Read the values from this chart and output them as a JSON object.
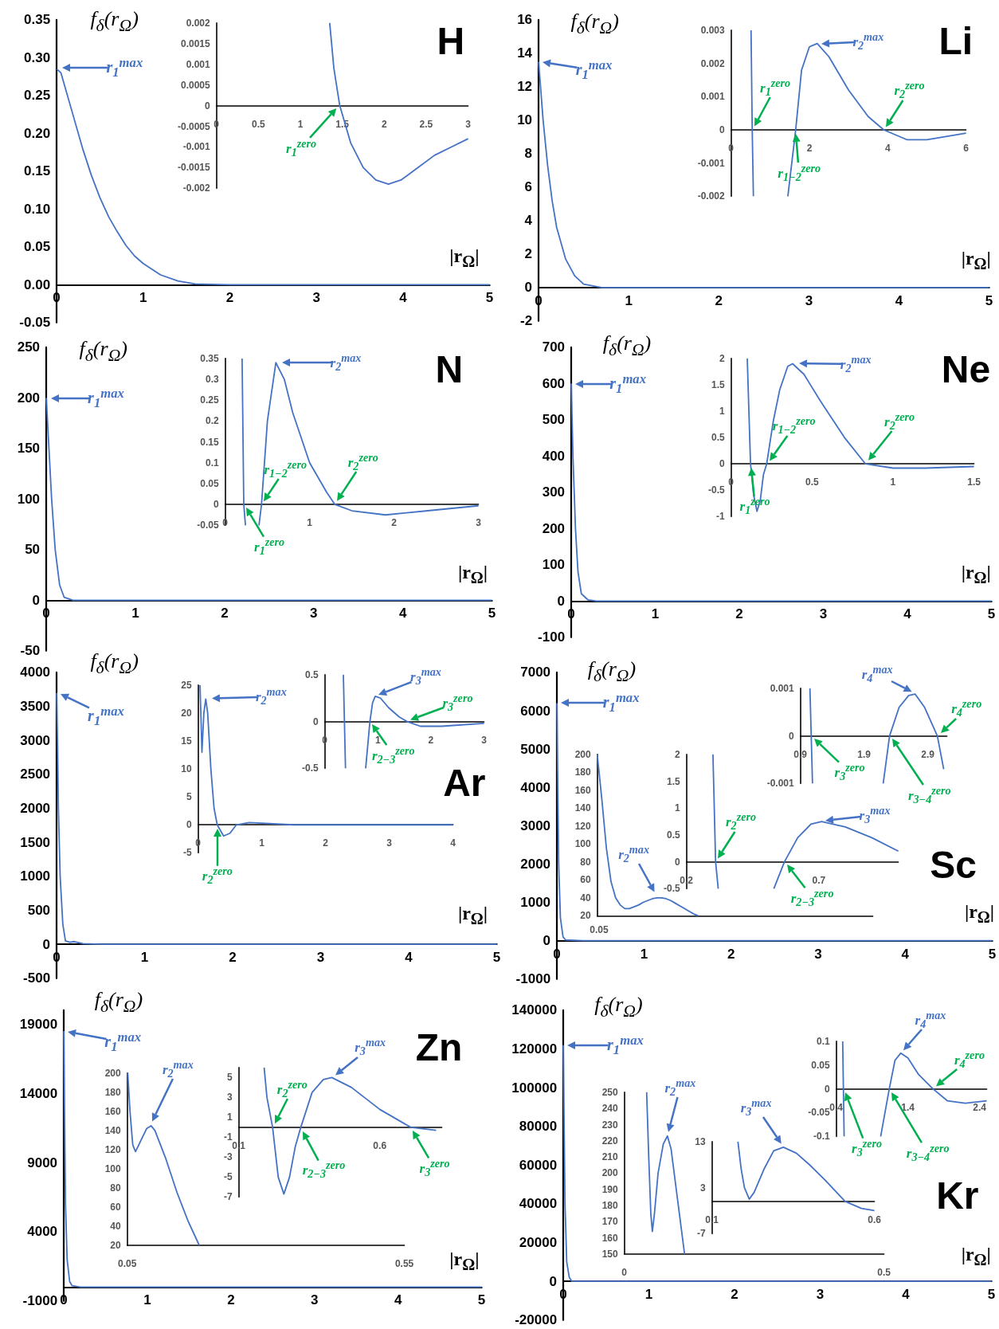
{
  "chart_data": [
    {
      "type": "line",
      "title": "H",
      "xlabel": "|r$_{Ω}$|",
      "ylabel": "f$_{δ}$(r$_{Ω}$)",
      "color": "#4472c4",
      "xlim": [
        0,
        5
      ],
      "xticks": [
        0,
        1,
        2,
        3,
        4,
        5
      ],
      "ylim": [
        -0.05,
        0.35
      ],
      "yticks": [
        {
          "value": -0.05,
          "label": "-0.05"
        },
        {
          "value": 0,
          "label": "0.00"
        },
        {
          "value": 0.05,
          "label": "0.05"
        },
        {
          "value": 0.1,
          "label": "0.10"
        },
        {
          "value": 0.15,
          "label": "0.15"
        },
        {
          "value": 0.2,
          "label": "0.20"
        },
        {
          "value": 0.25,
          "label": "0.25"
        },
        {
          "value": 0.3,
          "label": "0.30"
        },
        {
          "value": 0.35,
          "label": "0.35"
        }
      ],
      "x": [
        0,
        0.05,
        0.1,
        0.2,
        0.3,
        0.4,
        0.5,
        0.6,
        0.7,
        0.8,
        0.9,
        1,
        1.2,
        1.4,
        1.6,
        2,
        3,
        5
      ],
      "values": [
        0.285,
        0.28,
        0.26,
        0.22,
        0.18,
        0.145,
        0.115,
        0.09,
        0.07,
        0.052,
        0.038,
        0.028,
        0.013,
        0.005,
        0.001,
        0,
        0,
        0
      ],
      "annotations": [
        "r$_{1}$$^{max}$"
      ]
    },
    {
      "type": "line",
      "color": "#4472c4",
      "xlim": [
        0,
        3
      ],
      "xticks": [
        0,
        0.5,
        1,
        1.5,
        2,
        2.5,
        3
      ],
      "ylim": [
        -0.002,
        0.002
      ],
      "yticks": [
        -0.002,
        -0.0015,
        -0.001,
        -0.0005,
        0,
        0.0005,
        0.001,
        0.0015,
        0.002
      ],
      "x": [
        1.35,
        1.4,
        1.47,
        1.6,
        1.75,
        1.9,
        2.05,
        2.2,
        2.4,
        2.6,
        2.8,
        3
      ],
      "values": [
        0.002,
        0.0009,
        0,
        -0.0009,
        -0.0015,
        -0.0018,
        -0.0019,
        -0.0018,
        -0.0015,
        -0.0012,
        -0.001,
        -0.0008
      ],
      "annotations": [
        {
          "text": "r$_{1}$$^{zero}$",
          "x": 1.47,
          "y": 0
        }
      ]
    },
    {
      "type": "line",
      "title": "Li",
      "xlabel": "|r$_{Ω}$|",
      "ylabel": "f$_{δ}$(r$_{Ω}$)",
      "color": "#4472c4",
      "xlim": [
        0,
        5
      ],
      "xticks": [
        0,
        1,
        2,
        3,
        4,
        5
      ],
      "ylim": [
        -2,
        16
      ],
      "yticks": [
        -2,
        0,
        2,
        4,
        6,
        8,
        10,
        12,
        14,
        16
      ],
      "x": [
        0,
        0.05,
        0.1,
        0.15,
        0.2,
        0.3,
        0.4,
        0.5,
        0.7,
        5
      ],
      "values": [
        13.5,
        10,
        7.3,
        5.2,
        3.6,
        1.7,
        0.7,
        0.2,
        0,
        0
      ],
      "annotations": [
        {
          "text": "r$_{1}$$^{max}$",
          "x": 0,
          "y": 13.5
        }
      ]
    },
    {
      "type": "line",
      "color": "#4472c4",
      "xlim": [
        0,
        6
      ],
      "xticks": [
        0,
        2,
        4,
        6
      ],
      "ylim": [
        -0.002,
        0.003
      ],
      "yticks": [
        -0.002,
        -0.001,
        0,
        0.001,
        0.002,
        0.003
      ],
      "x": [
        0.51,
        0.54,
        0.57,
        1,
        1.45,
        1.65,
        1.8,
        2,
        2.2,
        2.5,
        3,
        3.5,
        3.9,
        4.5,
        5,
        6
      ],
      "values": [
        0.003,
        0,
        -0.002,
        null,
        -0.002,
        0,
        0.0018,
        0.0025,
        0.0026,
        0.0022,
        0.0012,
        0.0004,
        0,
        -0.0003,
        -0.0003,
        -0.0001
      ],
      "annotations": [
        {
          "text": "r$_{2}$$^{max}$",
          "x": 2.2,
          "y": 0.0026
        },
        {
          "text": "r$_{1}$$^{zero}$",
          "x": 0.54,
          "y": 0
        },
        {
          "text": "r$_{2}$$^{zero}$",
          "x": 3.9,
          "y": 0
        },
        {
          "text": "r$_{1−2}$$^{zero}$",
          "x": 1.65,
          "y": 0
        }
      ]
    },
    {
      "type": "line",
      "title": "N",
      "xlabel": "|r$_{Ω}$|",
      "ylabel": "f$_{δ}$(r$_{Ω}$)",
      "color": "#4472c4",
      "xlim": [
        0,
        5
      ],
      "xticks": [
        0,
        1,
        2,
        3,
        4,
        5
      ],
      "ylim": [
        -50,
        250
      ],
      "yticks": [
        -50,
        0,
        50,
        100,
        150,
        200,
        250
      ],
      "x": [
        0,
        0.03,
        0.06,
        0.1,
        0.15,
        0.2,
        0.3,
        5
      ],
      "values": [
        200,
        150,
        100,
        50,
        15,
        3,
        0,
        0
      ],
      "annotations": [
        {
          "text": "r$_{1}$$^{max}$",
          "x": 0,
          "y": 200
        }
      ]
    },
    {
      "type": "line",
      "color": "#4472c4",
      "xlim": [
        0,
        3
      ],
      "xticks": [
        0,
        1,
        2,
        3
      ],
      "ylim": [
        -0.05,
        0.35
      ],
      "yticks": [
        -0.05,
        0,
        0.05,
        0.1,
        0.15,
        0.2,
        0.25,
        0.3,
        0.35
      ],
      "x": [
        0.2,
        0.22,
        0.24,
        0.3,
        0.4,
        0.43,
        0.5,
        0.6,
        0.7,
        0.8,
        1,
        1.2,
        1.3,
        1.5,
        1.9,
        2.4,
        3
      ],
      "values": [
        0.35,
        0,
        -0.05,
        null,
        -0.05,
        0,
        0.2,
        0.34,
        0.3,
        0.22,
        0.1,
        0.03,
        0,
        -0.015,
        -0.025,
        -0.015,
        -0.003
      ],
      "annotations": [
        "r$_{2}$$^{max}$",
        {
          "text": "r$_{1−2}$$^{zero}$",
          "x": 0.43,
          "y": 0
        },
        {
          "text": "r$_{2}$$^{zero}$",
          "x": 1.3,
          "y": 0
        },
        {
          "text": "r$_{1}$$^{zero}$",
          "x": 0.22,
          "y": 0
        }
      ]
    },
    {
      "type": "line",
      "title": "Ne",
      "xlabel": "|r$_{Ω}$|",
      "ylabel": "f$_{δ}$(r$_{Ω}$)",
      "color": "#4472c4",
      "xlim": [
        0,
        5
      ],
      "xticks": [
        0,
        1,
        2,
        3,
        4,
        5
      ],
      "ylim": [
        -100,
        700
      ],
      "yticks": [
        -100,
        0,
        100,
        200,
        300,
        400,
        500,
        600,
        700
      ],
      "x": [
        0,
        0.02,
        0.05,
        0.08,
        0.12,
        0.2,
        0.3,
        5
      ],
      "values": [
        600,
        400,
        200,
        80,
        20,
        3,
        0,
        0
      ],
      "annotations": [
        {
          "text": "r$_{1}$$^{max}$",
          "x": 0,
          "y": 600
        }
      ]
    },
    {
      "type": "line",
      "color": "#4472c4",
      "xlim": [
        0,
        1.5
      ],
      "xticks": [
        0,
        0.5,
        1,
        1.5
      ],
      "ylim": [
        -1,
        2
      ],
      "yticks": [
        -1,
        -0.5,
        0,
        0.5,
        1,
        1.5,
        2
      ],
      "x": [
        0.1,
        0.12,
        0.14,
        0.16,
        0.18,
        0.2,
        0.22,
        0.26,
        0.3,
        0.35,
        0.38,
        0.45,
        0.55,
        0.7,
        0.83,
        1,
        1.2,
        1.5
      ],
      "values": [
        2,
        0,
        -0.6,
        -0.9,
        -0.7,
        -0.2,
        0,
        0.8,
        1.4,
        1.85,
        1.9,
        1.7,
        1.2,
        0.5,
        0,
        -0.08,
        -0.08,
        -0.05
      ],
      "annotations": [
        "r$_{2}$$^{max}$",
        {
          "text": "r$_{1−2}$$^{zero}$",
          "x": 0.22,
          "y": 0
        },
        {
          "text": "r$_{2}$$^{zero}$",
          "x": 0.83,
          "y": 0
        },
        {
          "text": "r$_{1}$$^{zero}$",
          "x": 0.12,
          "y": 0
        }
      ]
    },
    {
      "type": "line",
      "title": "Ar",
      "xlabel": "|r$_{Ω}$|",
      "ylabel": "f$_{δ}$(r$_{Ω}$)",
      "color": "#4472c4",
      "xlim": [
        0,
        5
      ],
      "xticks": [
        0,
        1,
        2,
        3,
        4,
        5
      ],
      "ylim": [
        -500,
        4000
      ],
      "yticks": [
        -500,
        0,
        500,
        1000,
        1500,
        2000,
        2500,
        3000,
        3500,
        4000
      ],
      "x": [
        0,
        0.01,
        0.02,
        0.04,
        0.07,
        0.1,
        0.15,
        0.2,
        0.3,
        0.5,
        5
      ],
      "values": [
        3700,
        3000,
        2000,
        1000,
        300,
        50,
        30,
        40,
        10,
        0,
        0
      ],
      "annotations": [
        {
          "text": "r$_{1}$$^{max}$",
          "x": 0,
          "y": 3700
        }
      ]
    },
    {
      "type": "line",
      "color": "#4472c4",
      "xlim": [
        0,
        4
      ],
      "xticks": [
        0,
        1,
        2,
        3,
        4
      ],
      "ylim": [
        -5,
        25
      ],
      "yticks": [
        -5,
        0,
        5,
        10,
        15,
        20,
        25
      ],
      "x": [
        0.03,
        0.06,
        0.09,
        0.12,
        0.15,
        0.2,
        0.25,
        0.3,
        0.4,
        0.5,
        0.6,
        0.8,
        1,
        1.5,
        4
      ],
      "values": [
        25,
        13,
        20,
        22.5,
        20,
        10,
        3,
        0,
        -2,
        -1.5,
        0,
        0.4,
        0.3,
        0,
        0
      ],
      "annotations": [
        "r$_{2}$$^{max}$",
        {
          "text": "r$_{2}$$^{zero}$",
          "x": 0.3,
          "y": 0
        }
      ]
    },
    {
      "type": "line",
      "color": "#4472c4",
      "xlim": [
        0,
        3
      ],
      "xticks": [
        0,
        1,
        2,
        3
      ],
      "ylim": [
        -0.5,
        0.5
      ],
      "yticks": [
        -0.5,
        0,
        0.5
      ],
      "x": [
        0.35,
        0.37,
        0.39,
        0.6,
        0.77,
        0.85,
        0.9,
        0.95,
        1.05,
        1.2,
        1.4,
        1.55,
        1.8,
        2.2,
        3
      ],
      "values": [
        0.5,
        0,
        -0.5,
        null,
        -0.5,
        0,
        0.2,
        0.27,
        0.25,
        0.15,
        0.05,
        0,
        -0.05,
        -0.05,
        -0.02
      ],
      "annotations": [
        {
          "text": "r$_{3}$$^{max}$",
          "x": 0.95,
          "y": 0.27
        },
        {
          "text": "r$_{3}$$^{zero}$",
          "x": 1.55,
          "y": 0
        },
        {
          "text": "r$_{2−3}$$^{zero}$",
          "x": 0.85,
          "y": 0
        }
      ]
    },
    {
      "type": "line",
      "title": "Sc",
      "xlabel": "|r$_{Ω}$|",
      "ylabel": "f$_{δ}$(r$_{Ω}$)",
      "color": "#4472c4",
      "xlim": [
        0,
        5
      ],
      "xticks": [
        0,
        1,
        2,
        3,
        4,
        5
      ],
      "ylim": [
        -1000,
        7000
      ],
      "yticks": [
        -1000,
        0,
        1000,
        2000,
        3000,
        4000,
        5000,
        6000,
        7000
      ],
      "x": [
        0,
        0.01,
        0.02,
        0.04,
        0.07,
        0.1,
        0.3,
        5
      ],
      "values": [
        6200,
        4000,
        2000,
        600,
        100,
        20,
        0,
        0
      ],
      "annotations": [
        {
          "text": "r$_{1}$$^{max}$",
          "x": 0,
          "y": 6200
        }
      ]
    },
    {
      "type": "line",
      "color": "#4472c4",
      "ylim": [
        20,
        200
      ],
      "yticks": [
        20,
        40,
        60,
        80,
        100,
        120,
        140,
        160,
        180,
        200
      ],
      "categories": [
        null,
        null,
        null,
        null,
        null,
        null,
        null,
        null,
        null,
        null,
        null,
        null,
        null,
        null,
        null,
        null,
        null,
        null,
        null,
        null,
        null,
        null,
        null,
        null,
        null,
        null,
        null,
        null,
        null,
        null,
        null,
        null,
        null,
        null,
        null,
        null,
        null,
        null,
        null,
        null,
        null,
        null,
        null,
        null,
        null,
        null,
        null,
        null,
        null,
        null,
        null,
        null,
        null,
        null,
        null,
        null,
        null,
        null,
        null,
        null,
        null
      ],
      "values": [
        200,
        150,
        95,
        58,
        40,
        32,
        28,
        28,
        30,
        32,
        35,
        37,
        39,
        40,
        40,
        39,
        37,
        34,
        31,
        28,
        25,
        22,
        20,
        null,
        null,
        null,
        null,
        null,
        null,
        null,
        null,
        null,
        null,
        null,
        null,
        null,
        null,
        null,
        null,
        null,
        null,
        null,
        null,
        null,
        null,
        null,
        null,
        null,
        null,
        null,
        null,
        null,
        null,
        null,
        null,
        null,
        null,
        null,
        null,
        null,
        null
      ],
      "annotations": [
        "0.05",
        "r$_{2}$$^{max}$"
      ]
    },
    {
      "type": "line",
      "color": "#4472c4",
      "xlim": [
        0.2,
        1
      ],
      "xticks": [
        0.2,
        0.7
      ],
      "ylim": [
        -0.5,
        2
      ],
      "yticks": [
        -0.5,
        0,
        0.5,
        1,
        1.5,
        2
      ],
      "x": [
        0.3,
        0.31,
        0.32,
        0.45,
        0.53,
        0.57,
        0.62,
        0.67,
        0.71,
        0.8,
        0.9,
        1
      ],
      "values": [
        2,
        0,
        -0.5,
        null,
        -0.5,
        0,
        0.45,
        0.7,
        0.75,
        0.65,
        0.45,
        0.2
      ],
      "annotations": [
        {
          "text": "r$_{2}$$^{zero}$",
          "x": 0.31,
          "y": 0
        },
        {
          "text": "r$_{3}$$^{max}$",
          "x": 0.71,
          "y": 0.75
        },
        {
          "text": "r$_{2−3}$$^{zero}$",
          "x": 0.57,
          "y": 0
        }
      ]
    },
    {
      "type": "line",
      "color": "#4472c4",
      "xlim": [
        0.9,
        3.2
      ],
      "xticks": [
        0.9,
        1.9,
        2.9
      ],
      "ylim": [
        -0.001,
        0.001
      ],
      "yticks": [
        -0.001,
        0,
        0.001
      ],
      "x": [
        1.05,
        1.07,
        1.09,
        1.6,
        2.2,
        2.3,
        2.45,
        2.6,
        2.7,
        2.85,
        3.05,
        3.15
      ],
      "values": [
        0.001,
        0,
        -0.001,
        null,
        -0.001,
        0,
        0.0006,
        0.00085,
        0.00088,
        0.0006,
        0,
        -0.0007
      ],
      "annotations": [
        {
          "text": "r$_{4}$$^{max}$",
          "x": 2.7,
          "y": 0.00088
        },
        {
          "text": "r$_{4}$$^{zero}$",
          "x": 3.05,
          "y": 0
        },
        {
          "text": "r$_{3}$$^{zero}$",
          "x": 1.07,
          "y": 0
        },
        "r$_{3−4}$$^{zero}$"
      ]
    },
    {
      "type": "line",
      "title": "Zn",
      "xlabel": "|r$_{Ω}$|",
      "ylabel": "f$_{δ}$(r$_{Ω}$)",
      "color": "#4472c4",
      "xlim": [
        0,
        5
      ],
      "xticks": [
        0,
        1,
        2,
        3,
        4,
        5
      ],
      "ylim": [
        -1000,
        20000
      ],
      "yticks": [
        -1000,
        4000,
        9000,
        14000,
        19000
      ],
      "x": [
        0,
        0.01,
        0.02,
        0.04,
        0.07,
        0.1,
        0.2,
        5
      ],
      "values": [
        18500,
        12000,
        6000,
        2000,
        400,
        100,
        0,
        0
      ],
      "annotations": [
        {
          "text": "r$_{1}$$^{max}$",
          "x": 0,
          "y": 18500
        }
      ]
    },
    {
      "type": "line",
      "color": "#4472c4",
      "xlim": [
        0.05,
        0.55
      ],
      "xticks": [
        0.05,
        0.55
      ],
      "ylim": [
        20,
        200
      ],
      "yticks": [
        20,
        40,
        60,
        80,
        100,
        120,
        140,
        160,
        180,
        200
      ],
      "x": [
        0.051,
        0.055,
        0.06,
        0.065,
        0.075,
        0.085,
        0.093,
        0.1,
        0.12,
        0.14,
        0.16,
        0.18
      ],
      "values": [
        200,
        160,
        125,
        118,
        130,
        142,
        145,
        140,
        110,
        75,
        45,
        20
      ],
      "annotations": [
        "r$_{2}$$^{max}$"
      ]
    },
    {
      "type": "line",
      "color": "#4472c4",
      "xlim": [
        0.1,
        0.82
      ],
      "xticks": [
        0.1,
        0.6
      ],
      "ylim": [
        -7,
        6
      ],
      "yticks": [
        -7,
        -5,
        -3,
        -1,
        1,
        3,
        5
      ],
      "x": [
        0.19,
        0.2,
        0.22,
        0.24,
        0.26,
        0.28,
        0.3,
        0.32,
        0.36,
        0.4,
        0.43,
        0.5,
        0.6,
        0.71,
        0.8
      ],
      "values": [
        6,
        3,
        0,
        -5,
        -6.7,
        -5,
        -2,
        0,
        3.5,
        4.8,
        5,
        4,
        1.8,
        0,
        -0.3
      ],
      "annotations": [
        {
          "text": "r$_{2}$$^{zero}$",
          "x": 0.22,
          "y": 0
        },
        {
          "text": "r$_{3}$$^{max}$",
          "x": 0.43,
          "y": 5
        },
        {
          "text": "r$_{2−3}$$^{zero}$",
          "x": 0.32,
          "y": 0
        },
        {
          "text": "r$_{3}$$^{zero}$",
          "x": 0.71,
          "y": 0
        }
      ]
    },
    {
      "type": "line",
      "title": "Kr",
      "xlabel": "|r$_{Ω}$|",
      "ylabel": "f$_{δ}$(r$_{Ω}$)",
      "color": "#4472c4",
      "xlim": [
        0,
        5
      ],
      "xticks": [
        0,
        1,
        2,
        3,
        4,
        5
      ],
      "ylim": [
        -20000,
        140000
      ],
      "yticks": [
        -20000,
        0,
        20000,
        40000,
        60000,
        80000,
        100000,
        120000,
        140000
      ],
      "x": [
        0,
        0.01,
        0.02,
        0.04,
        0.07,
        0.1,
        5
      ],
      "values": [
        122000,
        80000,
        40000,
        10000,
        2000,
        0,
        0
      ],
      "annotations": [
        {
          "text": "r$_{1}$$^{max}$",
          "x": 0,
          "y": 122000
        }
      ]
    },
    {
      "type": "line",
      "color": "#4472c4",
      "xlim": [
        0,
        0.5
      ],
      "xticks": [
        0,
        0.5
      ],
      "ylim": [
        150,
        250
      ],
      "yticks": [
        150,
        160,
        170,
        180,
        190,
        200,
        210,
        220,
        230,
        240,
        250
      ],
      "x": [
        0.043,
        0.047,
        0.051,
        0.054,
        0.058,
        0.065,
        0.075,
        0.083,
        0.09,
        0.1,
        0.11,
        0.116
      ],
      "values": [
        250,
        210,
        175,
        164,
        175,
        200,
        218,
        223,
        215,
        190,
        165,
        150
      ],
      "annotations": [
        {
          "text": "r$_{2}$$^{max}$",
          "x": 0.083,
          "y": 223
        }
      ]
    },
    {
      "type": "line",
      "color": "#4472c4",
      "xlim": [
        0.1,
        0.6
      ],
      "xticks": [
        0.1,
        0.6
      ],
      "ylim": [
        -7,
        13
      ],
      "yticks": [
        -7,
        3,
        13
      ],
      "x": [
        0.18,
        0.19,
        0.2,
        0.215,
        0.23,
        0.26,
        0.29,
        0.32,
        0.36,
        0.4,
        0.45,
        0.51,
        0.56,
        0.6
      ],
      "values": [
        13,
        7,
        3,
        0.5,
        2,
        7,
        11,
        11.8,
        10.5,
        8,
        4.5,
        0,
        -1.5,
        -2
      ],
      "annotations": [
        {
          "text": "r$_{3}$$^{max}$",
          "x": 0.32,
          "y": 11.8
        }
      ]
    },
    {
      "type": "line",
      "color": "#4472c4",
      "xlim": [
        0.4,
        2.5
      ],
      "xticks": [
        0.4,
        1.4,
        2.4
      ],
      "ylim": [
        -0.1,
        0.1
      ],
      "yticks": [
        -0.1,
        -0.05,
        0,
        0.05,
        0.1
      ],
      "x": [
        0.49,
        0.5,
        0.51,
        0.8,
        1.02,
        1.14,
        1.22,
        1.3,
        1.4,
        1.55,
        1.75,
        1.95,
        2.2,
        2.5
      ],
      "values": [
        0.1,
        0,
        -0.1,
        null,
        -0.1,
        0,
        0.06,
        0.075,
        0.065,
        0.03,
        0,
        -0.025,
        -0.03,
        -0.025
      ],
      "annotations": [
        {
          "text": "r$_{4}$$^{max}$",
          "x": 1.3,
          "y": 0.075
        },
        {
          "text": "r$_{4}$$^{zero}$",
          "x": 1.75,
          "y": 0
        },
        "r$_{3}$$^{zero}$",
        "r$_{3−4}$$^{zero}$"
      ]
    }
  ]
}
